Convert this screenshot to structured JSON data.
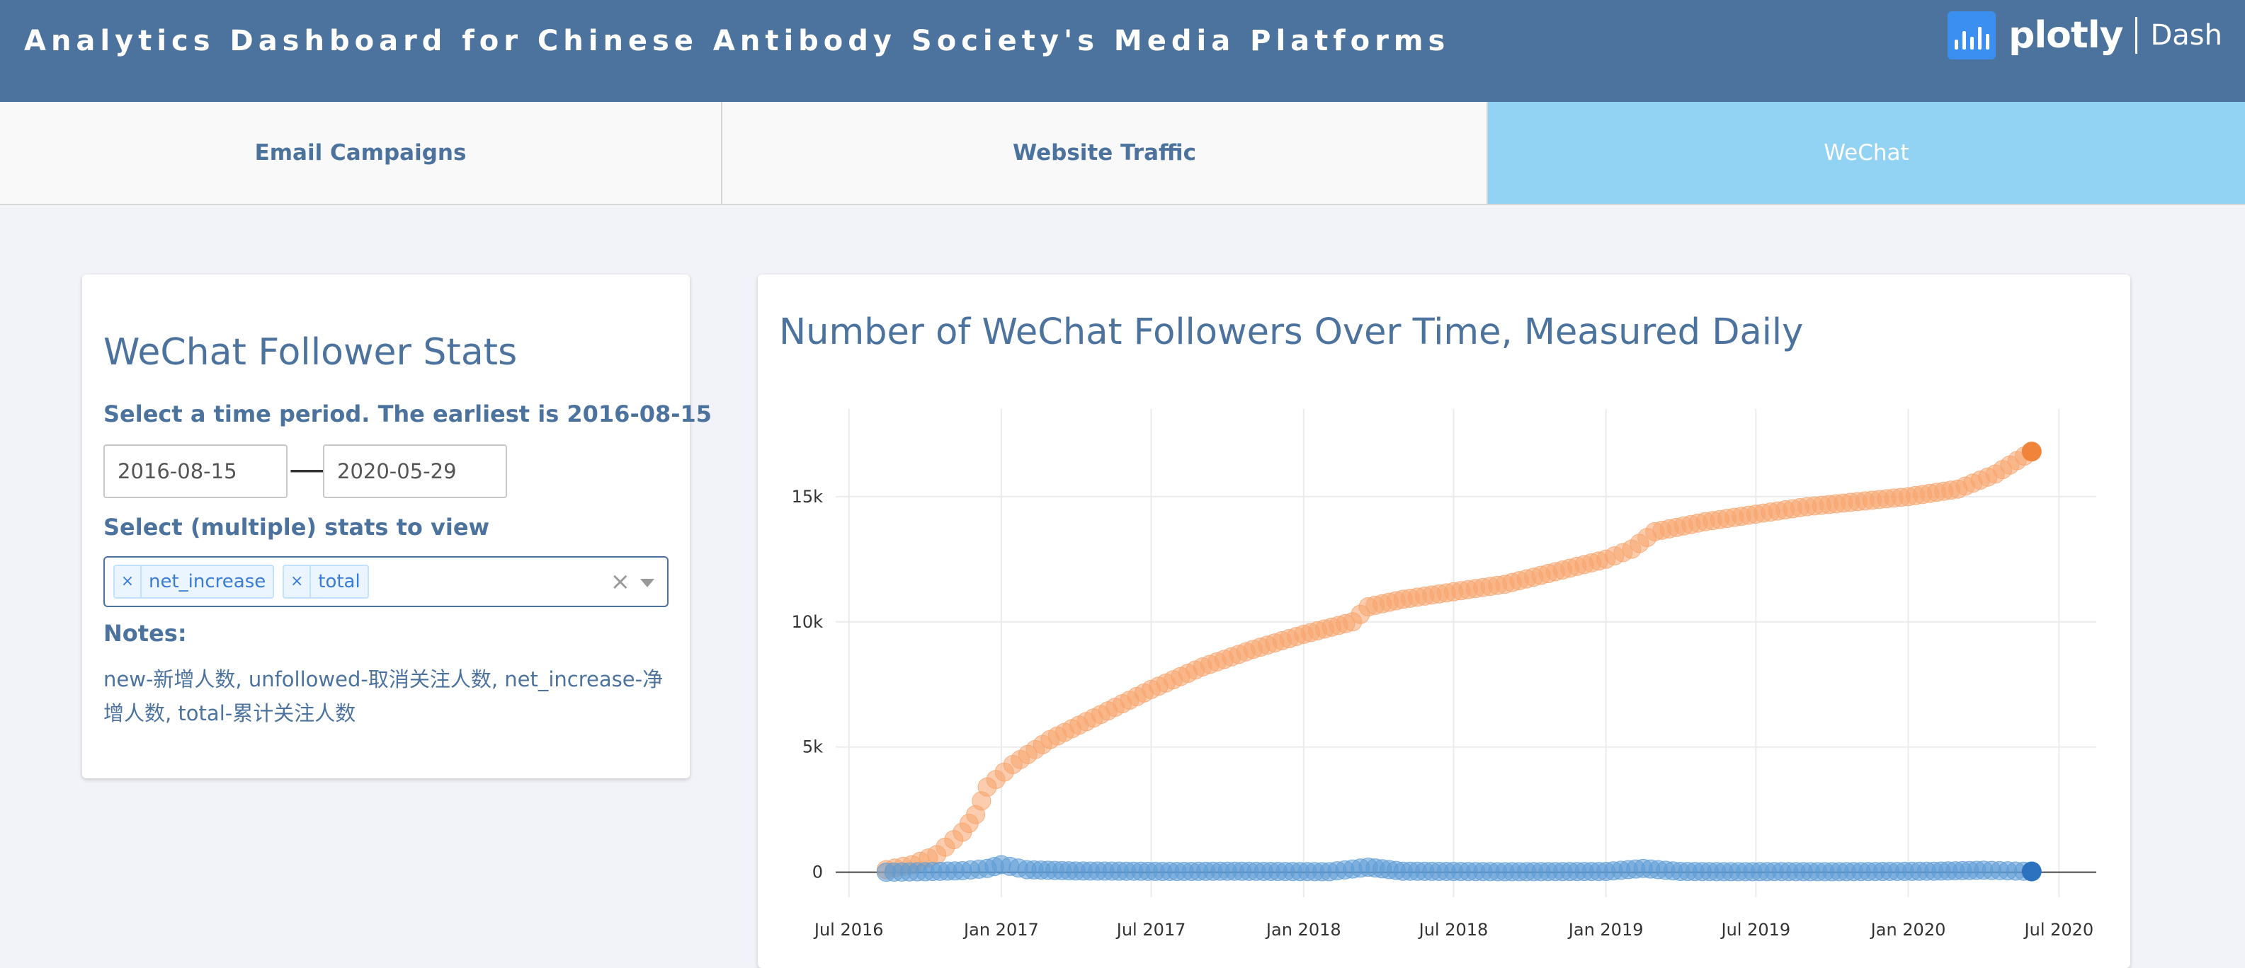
{
  "header": {
    "title": "Analytics Dashboard for Chinese Antibody Society's Media Platforms",
    "brand_name": "plotly",
    "brand_product": "Dash",
    "brand_icon": "plotly-logo-icon"
  },
  "tabs": [
    {
      "label": "Email Campaigns",
      "active": false
    },
    {
      "label": "Website Traffic",
      "active": false
    },
    {
      "label": "WeChat",
      "active": true
    }
  ],
  "sidebar": {
    "title": "WeChat Follower Stats",
    "period_label": "Select a time period. The earliest is 2016-08-15",
    "start_date": "2016-08-15",
    "end_date": "2020-05-29",
    "arrow": "⟶",
    "stats_label": "Select (multiple) stats to view",
    "selected_stats": [
      "net_increase",
      "total"
    ],
    "chip_remove": "×",
    "clear_all": "×",
    "notes_label": "Notes:",
    "notes_text": "new-新增人数, unfollowed-取消关注人数, net_increase-净增人数, total-累计关注人数"
  },
  "chart_data": {
    "type": "scatter",
    "title": "Number of WeChat Followers Over Time, Measured Daily",
    "xlabel": "",
    "ylabel": "",
    "x_ticks": [
      "Jul 2016",
      "Jan 2017",
      "Jul 2017",
      "Jan 2018",
      "Jul 2018",
      "Jan 2019",
      "Jul 2019",
      "Jan 2020",
      "Jul 2020"
    ],
    "y_ticks": [
      "0",
      "5k",
      "10k",
      "15k"
    ],
    "xlim": [
      "2016-06-15",
      "2020-08-15"
    ],
    "ylim": [
      -1000,
      18500
    ],
    "grid": true,
    "colors": {
      "net_increase": "#5b9bd5",
      "total": "#f8a46b",
      "net_increase_last": "#2c72bf",
      "total_last": "#f0843a"
    },
    "series": [
      {
        "key": "total",
        "x": [
          "2016-08-15",
          "2016-09-15",
          "2016-10-15",
          "2016-11-15",
          "2016-12-01",
          "2016-12-15",
          "2017-01-15",
          "2017-03-01",
          "2017-05-01",
          "2017-07-01",
          "2017-09-01",
          "2017-11-01",
          "2018-01-01",
          "2018-03-01",
          "2018-03-20",
          "2018-05-01",
          "2018-07-01",
          "2018-09-01",
          "2018-11-01",
          "2019-01-01",
          "2019-02-01",
          "2019-03-01",
          "2019-05-01",
          "2019-07-01",
          "2019-09-01",
          "2019-11-01",
          "2020-01-01",
          "2020-03-01",
          "2020-04-15",
          "2020-05-29"
        ],
        "y": [
          100,
          300,
          700,
          1600,
          2300,
          3400,
          4300,
          5300,
          6300,
          7300,
          8200,
          8900,
          9500,
          10000,
          10600,
          10900,
          11200,
          11500,
          12000,
          12500,
          12900,
          13600,
          14000,
          14300,
          14600,
          14800,
          15000,
          15300,
          15900,
          16800
        ]
      },
      {
        "key": "net_increase",
        "x": [
          "2016-08-15",
          "2016-10-01",
          "2016-11-15",
          "2016-12-15",
          "2017-01-01",
          "2017-02-01",
          "2017-04-01",
          "2017-06-01",
          "2017-08-01",
          "2017-10-01",
          "2017-12-01",
          "2018-02-01",
          "2018-03-20",
          "2018-05-01",
          "2018-07-01",
          "2018-09-01",
          "2018-11-01",
          "2019-01-01",
          "2019-02-15",
          "2019-04-01",
          "2019-06-01",
          "2019-08-01",
          "2019-10-01",
          "2019-12-01",
          "2020-02-01",
          "2020-04-01",
          "2020-05-29"
        ],
        "y": [
          0,
          20,
          60,
          150,
          300,
          100,
          50,
          40,
          30,
          40,
          30,
          20,
          200,
          40,
          30,
          20,
          25,
          30,
          150,
          30,
          20,
          25,
          20,
          30,
          40,
          80,
          30
        ]
      }
    ]
  }
}
